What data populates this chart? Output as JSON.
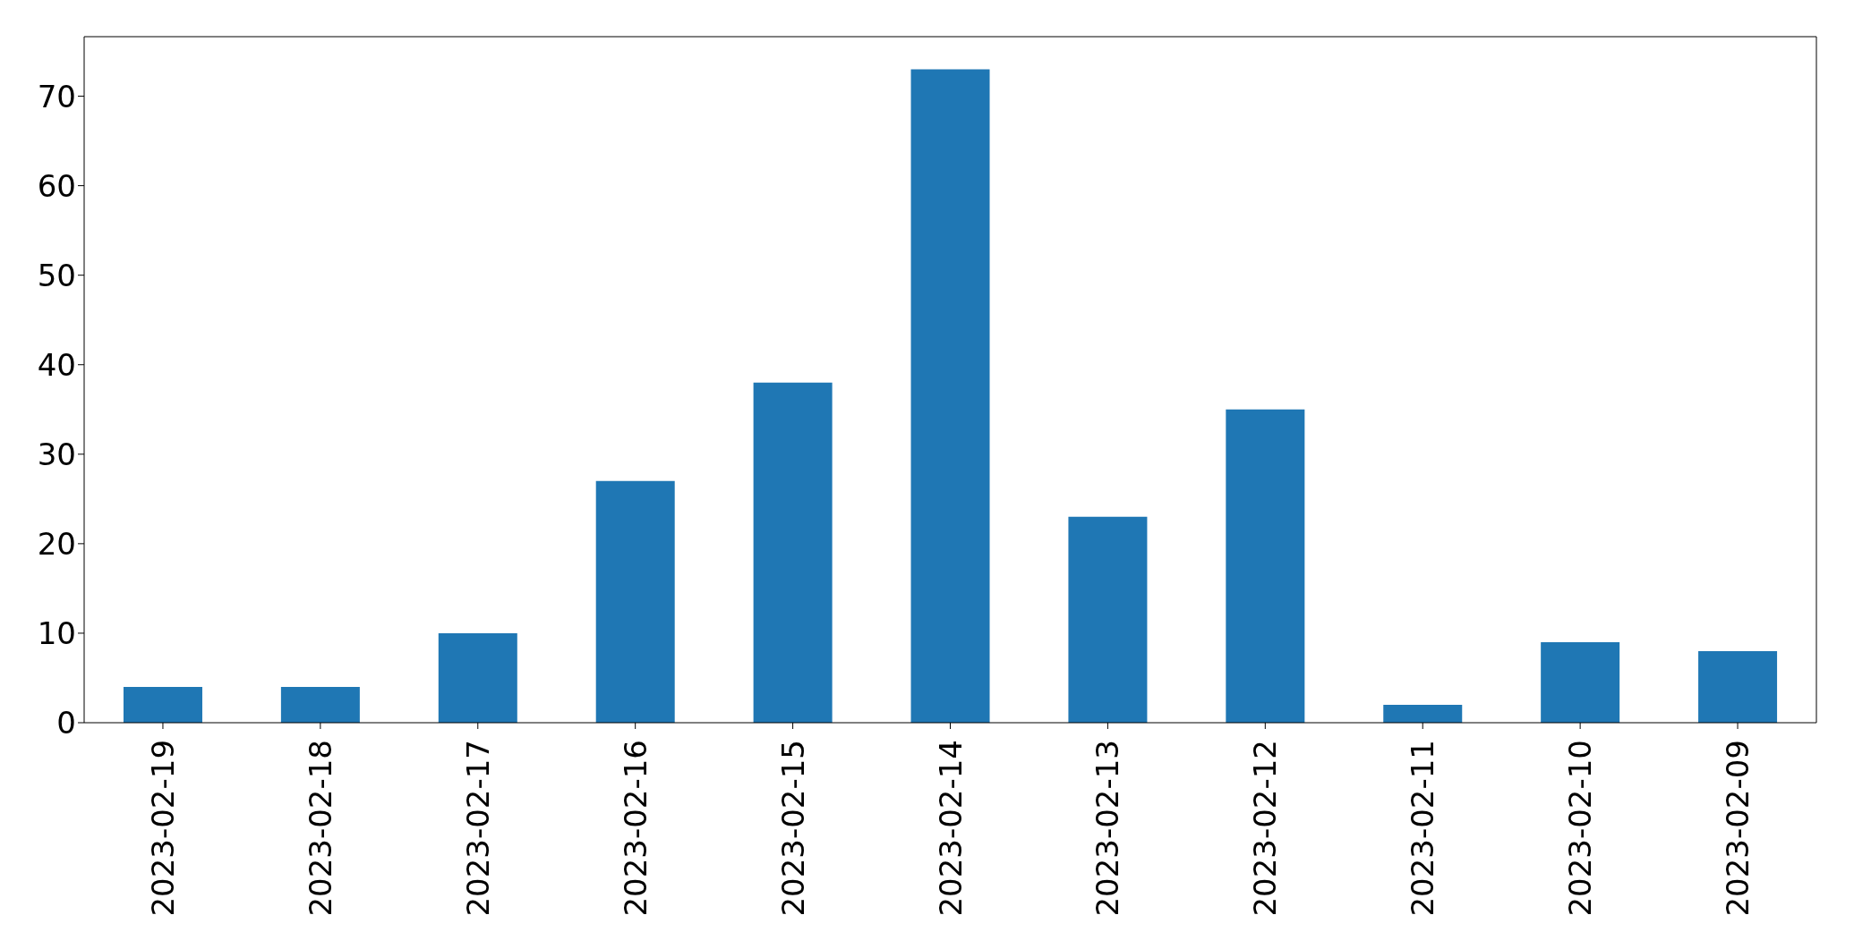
{
  "chart_data": {
    "type": "bar",
    "categories": [
      "2023-02-19",
      "2023-02-18",
      "2023-02-17",
      "2023-02-16",
      "2023-02-15",
      "2023-02-14",
      "2023-02-13",
      "2023-02-12",
      "2023-02-11",
      "2023-02-10",
      "2023-02-09"
    ],
    "values": [
      4,
      4,
      10,
      27,
      38,
      73,
      23,
      35,
      2,
      9,
      8
    ],
    "color": "#1f77b4",
    "ylim": [
      0,
      76.65
    ],
    "yticks": [
      0,
      10,
      20,
      30,
      40,
      50,
      60,
      70
    ],
    "grid": false
  }
}
